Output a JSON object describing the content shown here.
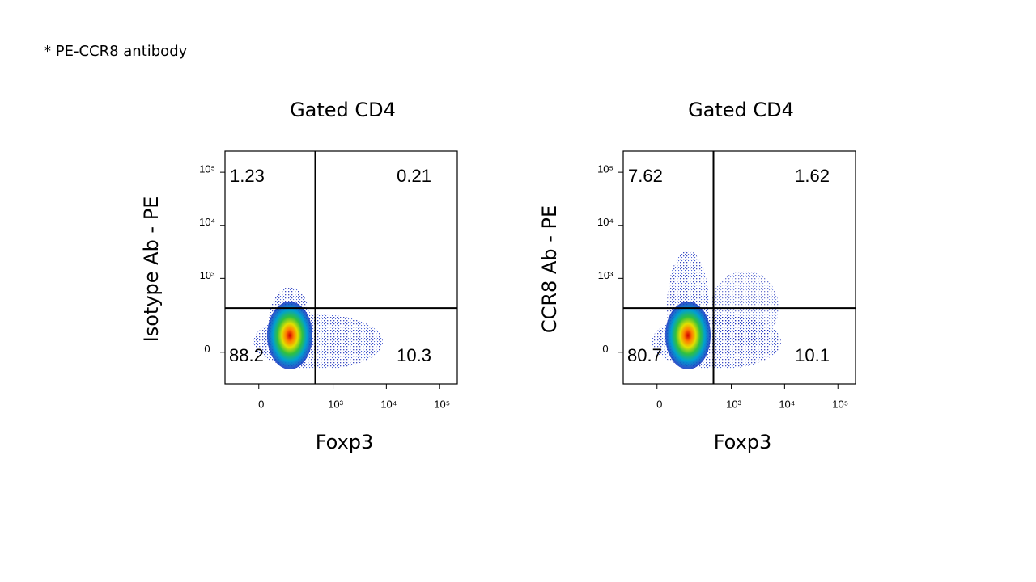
{
  "note": "* PE-CCR8 antibody",
  "chart_data": [
    {
      "type": "flow-quadrant",
      "title": "Gated CD4",
      "xlabel": "Foxp3",
      "ylabel": "Isotype Ab - PE",
      "values": [
        1.23,
        0.21,
        88.2,
        10.3
      ],
      "gates": {
        "x": 460,
        "y": 270
      },
      "scale": "biexponential",
      "xlim": [
        -165,
        214000
      ],
      "ylim": [
        -150,
        250000
      ],
      "xticks": [
        0,
        {
          "value": 1000,
          "label": "10³"
        },
        {
          "value": 10000,
          "label": "10⁴"
        },
        {
          "value": 100000,
          "label": "10⁵"
        }
      ],
      "yticks": [
        0,
        {
          "value": 1000,
          "label": "10³"
        },
        {
          "value": 10000,
          "label": "10⁴"
        },
        {
          "value": 100000,
          "label": "10⁵"
        }
      ]
    },
    {
      "type": "flow-quadrant",
      "title": "Gated CD4",
      "xlabel": "Foxp3",
      "ylabel": "CCR8 Ab - PE",
      "values": [
        7.62,
        1.62,
        80.7,
        10.1
      ],
      "gates": {
        "x": 460,
        "y": 270
      },
      "scale": "biexponential",
      "xlim": [
        -165,
        214000
      ],
      "ylim": [
        -150,
        250000
      ],
      "xticks": [
        0,
        {
          "value": 1000,
          "label": "10³"
        },
        {
          "value": 10000,
          "label": "10⁴"
        },
        {
          "value": 100000,
          "label": "10⁵"
        }
      ],
      "yticks": [
        0,
        {
          "value": 1000,
          "label": "10³"
        },
        {
          "value": 10000,
          "label": "10⁴"
        },
        {
          "value": 100000,
          "label": "10⁵"
        }
      ]
    }
  ]
}
